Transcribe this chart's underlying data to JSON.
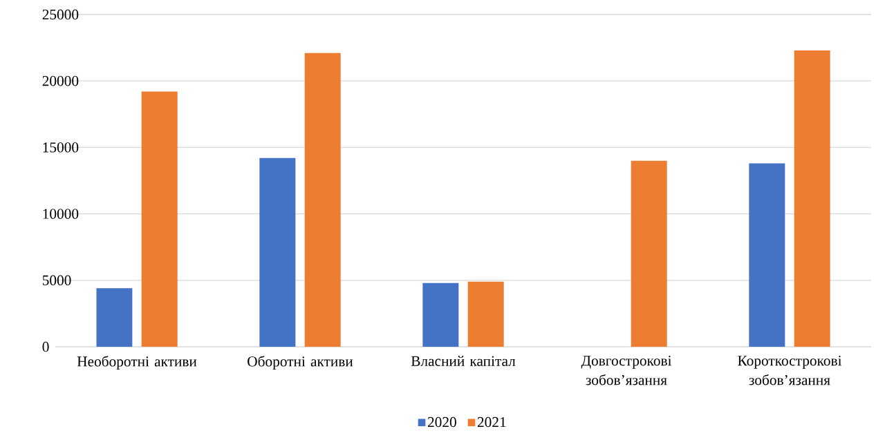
{
  "chart_data": {
    "type": "bar",
    "categories": [
      "Необоротні активи",
      "Оборотні активи",
      "Власний капітал",
      "Довгострокові зобов’язання",
      "Короткострокові зобов’язання"
    ],
    "series": [
      {
        "name": "2020",
        "color": "#4472c4",
        "values": [
          4400,
          14200,
          4800,
          0,
          13800
        ]
      },
      {
        "name": "2021",
        "color": "#ed7d31",
        "values": [
          19200,
          22100,
          4900,
          14000,
          22300
        ]
      }
    ],
    "ylim": [
      0,
      25000
    ],
    "yticks": [
      0,
      5000,
      10000,
      15000,
      20000,
      25000
    ],
    "grid": "y",
    "legend": "bottom"
  }
}
